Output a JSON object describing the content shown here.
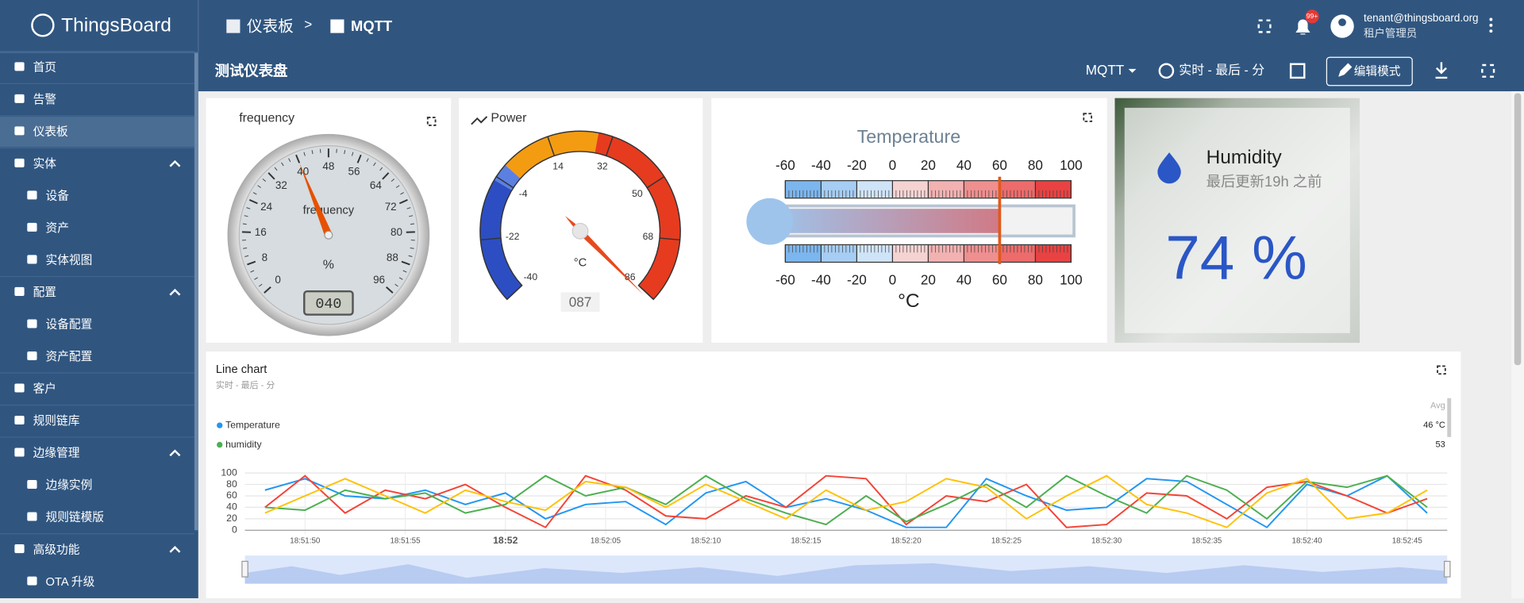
{
  "sidebar": {
    "logo": "ThingsBoard",
    "items": [
      {
        "label": "首页",
        "level": 0
      },
      {
        "label": "告警",
        "level": 0
      },
      {
        "label": "仪表板",
        "level": 0,
        "selected": true
      },
      {
        "label": "实体",
        "level": 0,
        "expanded": true
      },
      {
        "label": "设备",
        "level": 1
      },
      {
        "label": "资产",
        "level": 1
      },
      {
        "label": "实体视图",
        "level": 1
      },
      {
        "label": "配置",
        "level": 0,
        "expanded": true
      },
      {
        "label": "设备配置",
        "level": 1
      },
      {
        "label": "资产配置",
        "level": 1
      },
      {
        "label": "客户",
        "level": 0
      },
      {
        "label": "规则链库",
        "level": 0
      },
      {
        "label": "边缘管理",
        "level": 0,
        "expanded": true
      },
      {
        "label": "边缘实例",
        "level": 1
      },
      {
        "label": "规则链模版",
        "level": 1
      },
      {
        "label": "高级功能",
        "level": 0,
        "expanded": true
      },
      {
        "label": "OTA 升级",
        "level": 1
      }
    ]
  },
  "header": {
    "breadcrumb": [
      "仪表板",
      "MQTT"
    ],
    "separator": ">",
    "badge": "99+",
    "user": "tenant@thingsboard.org",
    "role": "租户管理员"
  },
  "toolbar": {
    "title": "测试仪表盘",
    "state": "MQTT",
    "time": "实时 - 最后 - 分",
    "edit": "编辑模式"
  },
  "frequency": {
    "title": "frequency",
    "label": "frequency",
    "unit": "%",
    "value": 40,
    "value_label": "040",
    "ticks": [
      0,
      8,
      16,
      24,
      32,
      40,
      48,
      56,
      64,
      72,
      80,
      88,
      96
    ]
  },
  "power": {
    "title": "Power",
    "unit": "°C",
    "value": 87,
    "value_label": "087",
    "ticks": [
      -40,
      -22,
      -4,
      14,
      32,
      50,
      68,
      86
    ],
    "bands": [
      {
        "from": -40,
        "to": -5,
        "color": "#2d4ec2"
      },
      {
        "from": -5,
        "to": 0,
        "color": "#5c80e2"
      },
      {
        "from": 0,
        "to": 28,
        "color": "#f39c12"
      },
      {
        "from": 28,
        "to": 86,
        "color": "#e63b1f"
      }
    ]
  },
  "temperature": {
    "title": "Temperature",
    "unit": "°C",
    "value": 60,
    "ticks": [
      -60,
      -40,
      -20,
      0,
      20,
      40,
      60,
      80,
      100
    ]
  },
  "humidity": {
    "title": "Humidity",
    "subtitle": "最后更新19h 之前",
    "value": 74,
    "unit": "%"
  },
  "line_chart": {
    "title": "Line chart",
    "subtitle": "实时 - 最后 - 分",
    "avg_header": "Avg",
    "legend": [
      {
        "name": "Temperature",
        "color": "#2196f3",
        "avg": "46 °C"
      },
      {
        "name": "humidity",
        "color": "#4caf50",
        "avg": 53
      }
    ],
    "xlim": [
      47,
      107
    ],
    "xticks": [
      {
        "value": 50,
        "label": "18:51:50"
      },
      {
        "value": 55,
        "label": "18:51:55"
      },
      {
        "value": 60,
        "label": "18:52"
      },
      {
        "value": 65,
        "label": "18:52:05"
      },
      {
        "value": 70,
        "label": "18:52:10"
      },
      {
        "value": 75,
        "label": "18:52:15"
      },
      {
        "value": 80,
        "label": "18:52:20"
      },
      {
        "value": 85,
        "label": "18:52:25"
      },
      {
        "value": 90,
        "label": "18:52:30"
      },
      {
        "value": 95,
        "label": "18:52:35"
      },
      {
        "value": 100,
        "label": "18:52:40"
      },
      {
        "value": 105,
        "label": "18:52:45"
      }
    ],
    "ylim": [
      0,
      100
    ],
    "yticks": [
      0,
      20,
      40,
      60,
      80,
      100
    ],
    "x": [
      48,
      50,
      52,
      54,
      56,
      58,
      60,
      62,
      64,
      66,
      68,
      70,
      72,
      74,
      76,
      78,
      80,
      82,
      84,
      86,
      88,
      90,
      92,
      94,
      96,
      98,
      100,
      102,
      104,
      106
    ],
    "series": [
      {
        "color": "#2196f3",
        "values": [
          70,
          90,
          60,
          55,
          70,
          45,
          65,
          20,
          45,
          50,
          10,
          65,
          85,
          40,
          55,
          35,
          5,
          5,
          90,
          60,
          35,
          40,
          90,
          85,
          45,
          5,
          80,
          60,
          95,
          30
        ]
      },
      {
        "color": "#f44336",
        "values": [
          40,
          95,
          30,
          70,
          55,
          80,
          40,
          5,
          95,
          70,
          25,
          20,
          60,
          40,
          95,
          90,
          10,
          60,
          50,
          80,
          5,
          10,
          65,
          60,
          20,
          75,
          85,
          60,
          30,
          55
        ]
      },
      {
        "color": "#4caf50",
        "values": [
          40,
          35,
          70,
          55,
          65,
          30,
          45,
          95,
          60,
          75,
          45,
          95,
          55,
          30,
          10,
          60,
          15,
          45,
          80,
          40,
          95,
          60,
          30,
          95,
          70,
          20,
          85,
          75,
          95,
          40
        ]
      },
      {
        "color": "#ffc107",
        "values": [
          30,
          60,
          90,
          60,
          30,
          70,
          50,
          35,
          85,
          75,
          40,
          80,
          50,
          20,
          70,
          35,
          50,
          90,
          75,
          20,
          60,
          95,
          45,
          30,
          5,
          65,
          90,
          20,
          30,
          70
        ]
      }
    ]
  }
}
